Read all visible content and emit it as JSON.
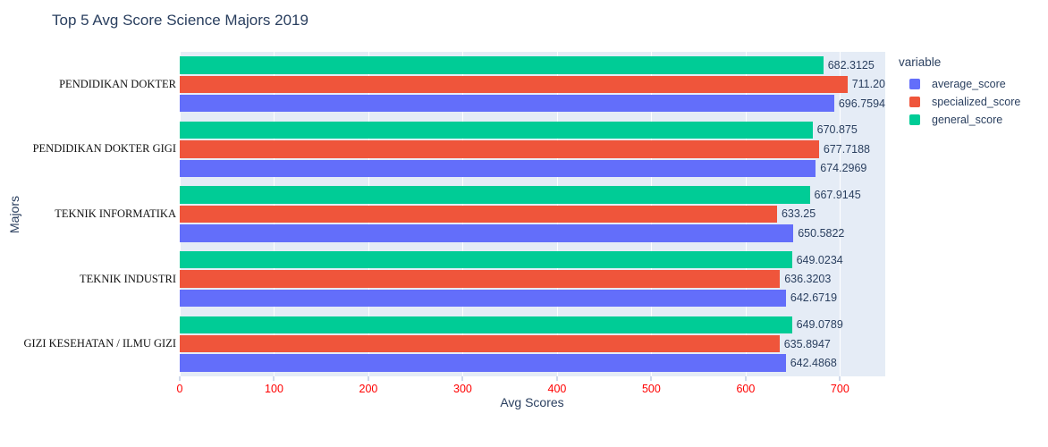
{
  "title": "Top 5 Avg Score Science Majors 2019",
  "colors": {
    "average_score": "#636EFA",
    "specialized_score": "#EF553B",
    "general_score": "#00CC96",
    "plot_background": "#E5ECF6",
    "gridline": "#FFFFFF",
    "text": "#2a3f5f",
    "x_tick_label": "#FF0000"
  },
  "legend": {
    "title": "variable",
    "items": [
      {
        "label": "average_score",
        "color": "#636EFA"
      },
      {
        "label": "specialized_score",
        "color": "#EF553B"
      },
      {
        "label": "general_score",
        "color": "#00CC96"
      }
    ]
  },
  "axes": {
    "x_title": "Avg Scores",
    "y_title": "Majors"
  },
  "chart_data": {
    "type": "bar",
    "orientation": "horizontal",
    "title": "Top 5 Avg Score Science Majors 2019",
    "xlabel": "Avg Scores",
    "ylabel": "Majors",
    "xlim": [
      0,
      748
    ],
    "xticks": [
      0,
      100,
      200,
      300,
      400,
      500,
      600,
      700
    ],
    "grid": true,
    "legend_position": "right",
    "categories": [
      "PENDIDIKAN DOKTER",
      "PENDIDIKAN DOKTER GIGI",
      "TEKNIK INFORMATIKA",
      "TEKNIK INDUSTRI",
      "GIZI KESEHATAN / ILMU GIZI"
    ],
    "bar_order_top_to_bottom": [
      "general_score",
      "specialized_score",
      "average_score"
    ],
    "series": [
      {
        "name": "average_score",
        "color": "#636EFA",
        "values": [
          696.7594,
          674.2969,
          650.5822,
          642.6719,
          642.4868
        ],
        "labels": [
          "696.7594",
          "674.2969",
          "650.5822",
          "642.6719",
          "642.4868"
        ]
      },
      {
        "name": "specialized_score",
        "color": "#EF553B",
        "values": [
          711.2,
          677.7188,
          633.25,
          636.3203,
          635.8947
        ],
        "labels": [
          "711.20",
          "677.7188",
          "633.25",
          "636.3203",
          "635.8947"
        ]
      },
      {
        "name": "general_score",
        "color": "#00CC96",
        "values": [
          682.3125,
          670.875,
          667.9145,
          649.0234,
          649.0789
        ],
        "labels": [
          "682.3125",
          "670.875",
          "667.9145",
          "649.0234",
          "649.0789"
        ]
      }
    ]
  }
}
